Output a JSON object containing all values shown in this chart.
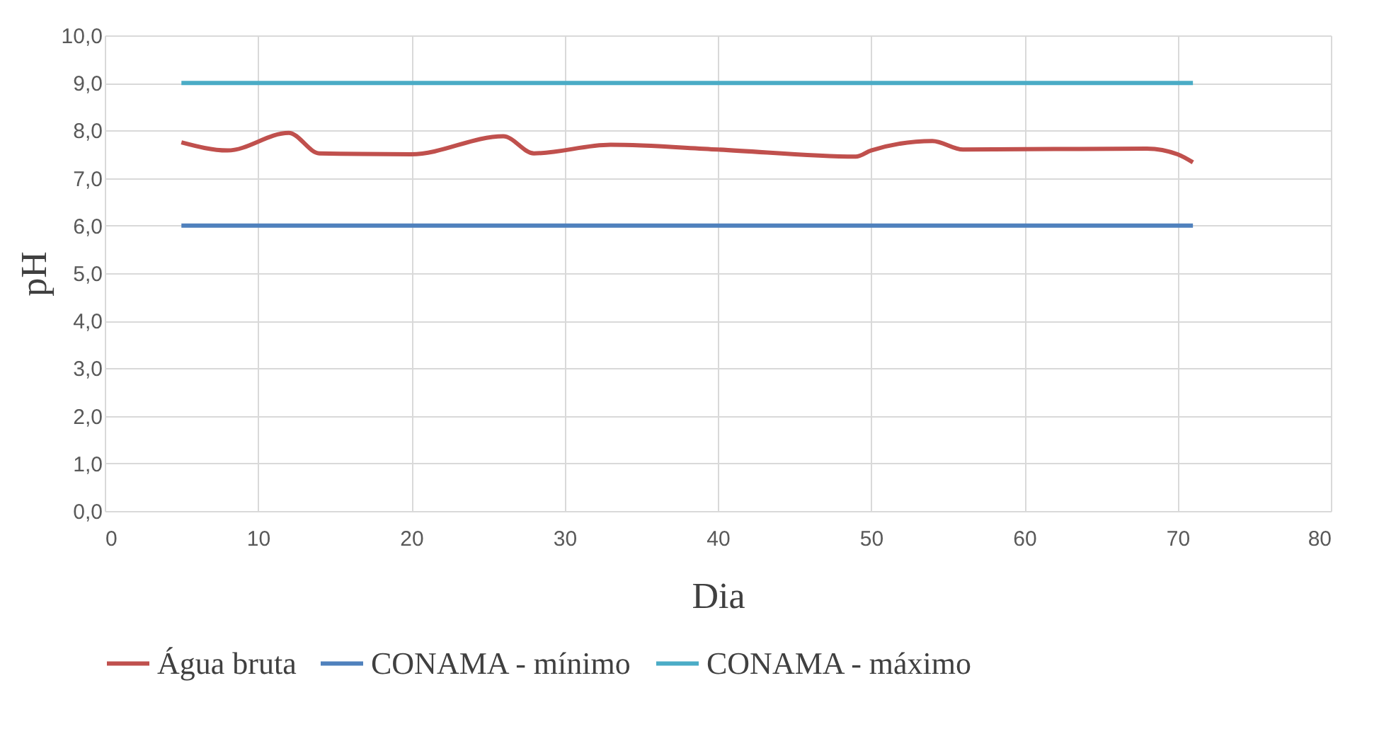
{
  "chart_data": {
    "type": "line",
    "xlabel": "Dia",
    "ylabel": "pH",
    "xlim": [
      0,
      80
    ],
    "xticks": [
      0,
      10,
      20,
      30,
      40,
      50,
      60,
      70,
      80
    ],
    "ylim": [
      0,
      10
    ],
    "yticks": [
      {
        "value": 0,
        "label": "0,0"
      },
      {
        "value": 1,
        "label": "1,0"
      },
      {
        "value": 2,
        "label": "2,0"
      },
      {
        "value": 3,
        "label": "3,0"
      },
      {
        "value": 4,
        "label": "4,0"
      },
      {
        "value": 5,
        "label": "5,0"
      },
      {
        "value": 6,
        "label": "6,0"
      },
      {
        "value": 7,
        "label": "7,0"
      },
      {
        "value": 8,
        "label": "8,0"
      },
      {
        "value": 9,
        "label": "9,0"
      },
      {
        "value": 10,
        "label": "10,0"
      }
    ],
    "grid": true,
    "legend": "bottom",
    "marker": "none",
    "line_style": "solid",
    "series": [
      {
        "name": "Água bruta",
        "color": "#c0504d",
        "x": [
          5,
          8,
          12,
          14,
          20,
          26,
          28,
          33,
          40,
          49,
          50,
          54,
          56,
          68,
          70,
          71
        ],
        "values": [
          7.75,
          7.58,
          7.95,
          7.52,
          7.5,
          7.88,
          7.52,
          7.7,
          7.6,
          7.45,
          7.58,
          7.78,
          7.6,
          7.62,
          7.5,
          7.33
        ]
      },
      {
        "name": "CONAMA - mínimo",
        "color": "#4f81bd",
        "x": [
          5,
          71
        ],
        "values": [
          6,
          6
        ]
      },
      {
        "name": "CONAMA - máximo",
        "color": "#4bacc6",
        "x": [
          5,
          71
        ],
        "values": [
          9,
          9
        ]
      }
    ]
  }
}
